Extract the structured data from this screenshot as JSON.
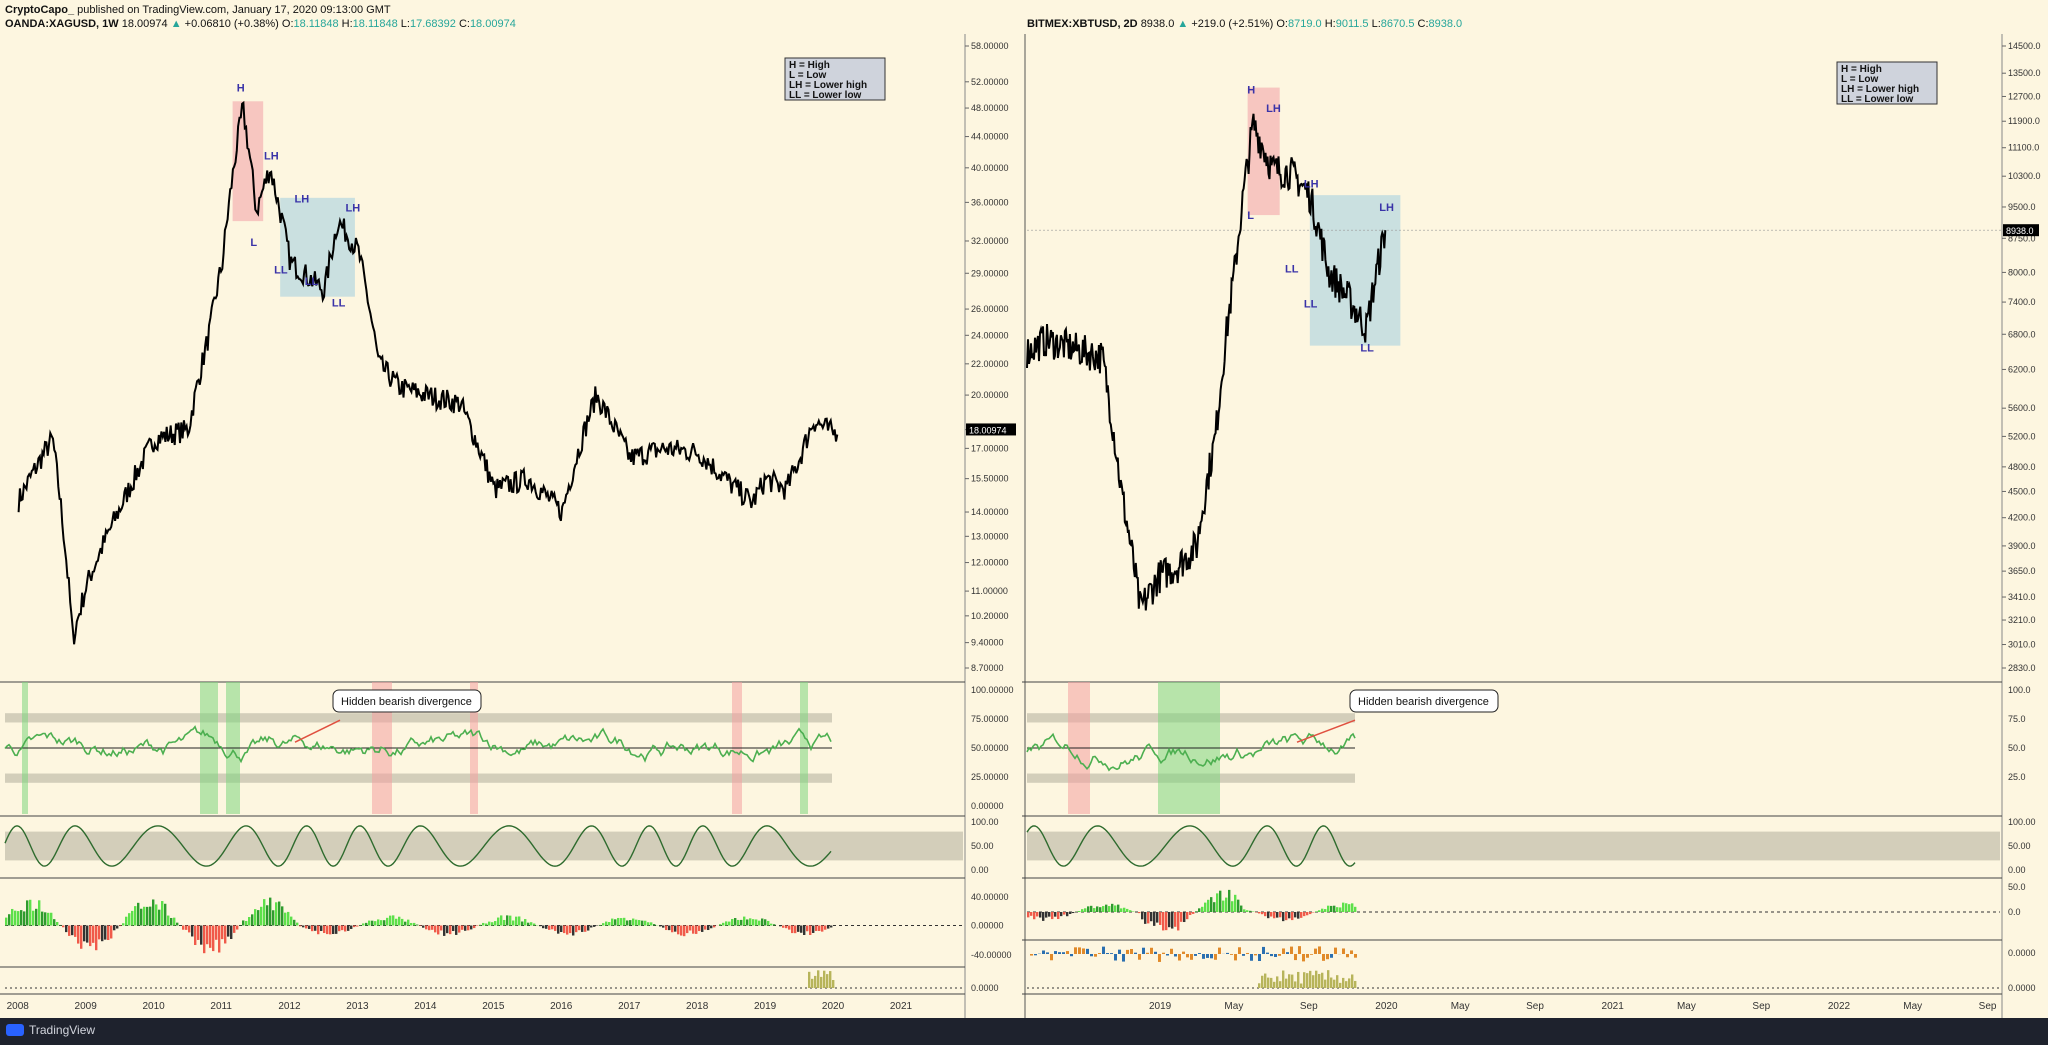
{
  "header": {
    "author": "CryptoCapo_",
    "published_text": "published on TradingView.com, January 17, 2020 09:13:00 GMT"
  },
  "left_symbol": {
    "name": "OANDA:XAGUSD, 1W",
    "last": "18.00974",
    "change": "+0.06810 (+0.38%)",
    "open_label": "O:",
    "open": "18.11848",
    "high_label": "H:",
    "high": "18.11848",
    "low_label": "L:",
    "low": "17.68392",
    "close_label": "C:",
    "close": "18.00974"
  },
  "right_symbol": {
    "name": "BITMEX:XBTUSD, 2D",
    "last": "8938.0",
    "change": "+219.0 (+2.51%)",
    "open_label": "O:",
    "open": "8719.0",
    "high_label": "H:",
    "high": "9011.5",
    "low_label": "L:",
    "low": "8670.5",
    "close_label": "C:",
    "close": "8938.0"
  },
  "footer": {
    "brand": "TradingView"
  },
  "colors": {
    "background": "#fdf6e0",
    "price_line": "#000000",
    "pink_box": "#f4b6b6",
    "blue_box": "#b8d8e0",
    "band": "#c8c4b0",
    "green_zone": "#7ed67e",
    "red_zone": "#f4a0a0",
    "osc_line": "#2e6b2e",
    "rsi_green": "#4caf50",
    "divergence_line": "#e05040"
  },
  "chart_data": [
    {
      "type": "line",
      "panel": "main-price",
      "symbol": "OANDA:XAGUSD",
      "x": [
        2008.0,
        2008.5,
        2008.8,
        2009.0,
        2009.5,
        2010.0,
        2010.5,
        2010.8,
        2011.0,
        2011.3,
        2011.5,
        2011.7,
        2012.0,
        2012.5,
        2012.7,
        2013.0,
        2013.3,
        2013.6,
        2014.0,
        2014.5,
        2015.0,
        2015.5,
        2016.0,
        2016.5,
        2017.0,
        2017.5,
        2018.0,
        2018.5,
        2018.8,
        2019.0,
        2019.3,
        2019.5,
        2019.7,
        2020.0,
        2020.05
      ],
      "values": [
        14.5,
        17.5,
        9.5,
        11.2,
        14.2,
        17.5,
        18.0,
        24.0,
        30.0,
        48.0,
        35.0,
        40.0,
        30.0,
        27.5,
        34.0,
        31.0,
        22.0,
        20.5,
        20.0,
        19.5,
        15.0,
        15.5,
        14.0,
        20.0,
        16.5,
        17.0,
        16.8,
        15.2,
        14.4,
        15.5,
        15.0,
        16.5,
        18.5,
        17.8,
        18.0
      ],
      "ylim": [
        8.7,
        58.0
      ],
      "y_scale": "log",
      "y_ticks": [
        "58.00000",
        "52.00000",
        "48.00000",
        "44.00000",
        "40.00000",
        "36.00000",
        "32.00000",
        "29.00000",
        "26.00000",
        "24.00000",
        "22.00000",
        "20.00000",
        "18.00000",
        "17.00000",
        "15.50000",
        "14.00000",
        "13.00000",
        "12.00000",
        "11.00000",
        "10.20000",
        "9.40000",
        "8.70000"
      ],
      "x_ticks": [
        "2008",
        "2009",
        "2010",
        "2011",
        "2012",
        "2013",
        "2014",
        "2015",
        "2016",
        "2017",
        "2018",
        "2019",
        "2020",
        "2021"
      ],
      "last_price_label": "18.00974",
      "annotations": [
        {
          "text": "H",
          "x": 2011.3,
          "y": 50.5
        },
        {
          "text": "LH",
          "x": 2011.7,
          "y": 41.0
        },
        {
          "text": "L",
          "x": 2011.5,
          "y": 31.5
        },
        {
          "text": "LH",
          "x": 2012.15,
          "y": 36.0
        },
        {
          "text": "LH",
          "x": 2012.9,
          "y": 35.0
        },
        {
          "text": "LL",
          "x": 2011.85,
          "y": 29.0
        },
        {
          "text": "LL",
          "x": 2012.3,
          "y": 28.0
        },
        {
          "text": "LL",
          "x": 2012.7,
          "y": 26.2
        }
      ],
      "legend_box": [
        "H = High",
        "L = Low",
        "LH = Lower high",
        "LL = Lower low"
      ],
      "divergence_label": "Hidden bearish divergence"
    },
    {
      "type": "line",
      "panel": "main-price",
      "symbol": "BITMEX:XBTUSD",
      "x": [
        "2018-06",
        "2018-07",
        "2018-08",
        "2018-09",
        "2018-10",
        "2018-11",
        "2018-12",
        "2019-01",
        "2019-02",
        "2019-03",
        "2019-04",
        "2019-05",
        "2019-06",
        "2019-07",
        "2019-08",
        "2019-09",
        "2019-10",
        "2019-11",
        "2019-12",
        "2020-01"
      ],
      "values": [
        6500,
        6700,
        6600,
        6500,
        6400,
        4500,
        3300,
        3600,
        3700,
        3900,
        5200,
        8000,
        11800,
        10500,
        10400,
        9800,
        8000,
        7500,
        6900,
        8938
      ],
      "ylim": [
        2830,
        14500
      ],
      "y_scale": "log",
      "y_ticks": [
        "14500.0",
        "13500.0",
        "12700.0",
        "11900.0",
        "11100.0",
        "10300.0",
        "9500.0",
        "8938.0",
        "8750.0",
        "8000.0",
        "7400.0",
        "6800.0",
        "6200.0",
        "5600.0",
        "5200.0",
        "4800.0",
        "4500.0",
        "4200.0",
        "3900.0",
        "3650.0",
        "3410.0",
        "3210.0",
        "3010.0",
        "2830.0"
      ],
      "x_ticks": [
        "2019",
        "May",
        "Sep",
        "2020",
        "May",
        "Sep",
        "2021",
        "May",
        "Sep",
        "2022",
        "May",
        "Sep"
      ],
      "last_price_label": "8938.0",
      "annotations": [
        {
          "text": "H",
          "x": "2019-06",
          "y": 12800
        },
        {
          "text": "LH",
          "x": "2019-07",
          "y": 12200
        },
        {
          "text": "L",
          "x": "2019-06",
          "y": 9200
        },
        {
          "text": "LH",
          "x": "2019-09",
          "y": 10000
        },
        {
          "text": "LH",
          "x": "2020-01",
          "y": 9400
        },
        {
          "text": "LL",
          "x": "2019-08",
          "y": 8000
        },
        {
          "text": "LL",
          "x": "2019-09",
          "y": 7300
        },
        {
          "text": "LL",
          "x": "2019-12",
          "y": 6500
        }
      ],
      "legend_box": [
        "H = High",
        "L = Low",
        "LH = Lower high",
        "LL = Lower low"
      ],
      "divergence_label": "Hidden bearish divergence"
    },
    {
      "type": "line",
      "panel": "rsi",
      "y_ticks_left": [
        "100.00000",
        "75.00000",
        "50.00000",
        "25.00000",
        "0.00000"
      ],
      "y_ticks_right": [
        "100.0",
        "75.0",
        "50.0",
        "25.0"
      ],
      "ylim": [
        0,
        100
      ],
      "bands": [
        25,
        75
      ]
    },
    {
      "type": "line",
      "panel": "stoch",
      "y_ticks_left": [
        "100.00",
        "50.00",
        "0.00"
      ],
      "y_ticks_right": [
        "100.00",
        "50.00",
        "0.00"
      ],
      "ylim": [
        0,
        100
      ]
    },
    {
      "type": "bar",
      "panel": "macd",
      "y_ticks_left": [
        "40.00000",
        "0.00000",
        "-40.00000"
      ],
      "y_ticks_right": [
        "50.0",
        "0.0"
      ]
    },
    {
      "type": "bar",
      "panel": "volume",
      "y_ticks_left": [
        "0.0000"
      ],
      "y_ticks_right": [
        "0.0000",
        "0.0000"
      ]
    }
  ]
}
